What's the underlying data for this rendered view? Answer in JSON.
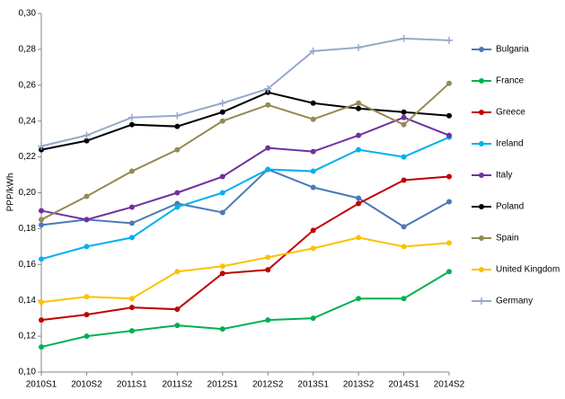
{
  "chart_data": {
    "type": "line",
    "y_label": "PPP/kWh",
    "categories": [
      "2010S1",
      "2010S2",
      "2011S1",
      "2011S2",
      "2012S1",
      "2012S2",
      "2013S1",
      "2013S2",
      "2014S1",
      "2014S2"
    ],
    "ylim": [
      0.1,
      0.3
    ],
    "yticks": [
      {
        "value": 0.1,
        "label": "0,10"
      },
      {
        "value": 0.12,
        "label": "0,12"
      },
      {
        "value": 0.14,
        "label": "0,14"
      },
      {
        "value": 0.16,
        "label": "0,16"
      },
      {
        "value": 0.18,
        "label": "0,18"
      },
      {
        "value": 0.2,
        "label": "0,20"
      },
      {
        "value": 0.22,
        "label": "0,22"
      },
      {
        "value": 0.24,
        "label": "0,24"
      },
      {
        "value": 0.26,
        "label": "0,26"
      },
      {
        "value": 0.28,
        "label": "0,28"
      },
      {
        "value": 0.3,
        "label": "0,30"
      }
    ],
    "grid": false,
    "legend": "right",
    "series": [
      {
        "name": "Bulgaria",
        "color": "#4a7ab5",
        "marker": "circle",
        "values": [
          0.182,
          0.185,
          0.183,
          0.194,
          0.189,
          0.213,
          0.203,
          0.197,
          0.181,
          0.195
        ]
      },
      {
        "name": "France",
        "color": "#00b050",
        "marker": "circle",
        "values": [
          0.114,
          0.12,
          0.123,
          0.126,
          0.124,
          0.129,
          0.13,
          0.141,
          0.141,
          0.156
        ]
      },
      {
        "name": "Greece",
        "color": "#c00000",
        "marker": "circle",
        "values": [
          0.129,
          0.132,
          0.136,
          0.135,
          0.155,
          0.157,
          0.179,
          0.194,
          0.207,
          0.209
        ]
      },
      {
        "name": "Ireland",
        "color": "#00b0f0",
        "marker": "circle",
        "values": [
          0.163,
          0.17,
          0.175,
          0.192,
          0.2,
          0.213,
          0.212,
          0.224,
          0.22,
          0.231
        ]
      },
      {
        "name": "Italy",
        "color": "#7030a0",
        "marker": "circle",
        "values": [
          0.19,
          0.185,
          0.192,
          0.2,
          0.209,
          0.225,
          0.223,
          0.232,
          0.242,
          0.232
        ]
      },
      {
        "name": "Poland",
        "color": "#000000",
        "marker": "circle",
        "values": [
          0.224,
          0.229,
          0.238,
          0.237,
          0.245,
          0.256,
          0.25,
          0.247,
          0.245,
          0.243
        ]
      },
      {
        "name": "Spain",
        "color": "#948a54",
        "marker": "circle",
        "values": [
          0.185,
          0.198,
          0.212,
          0.224,
          0.24,
          0.249,
          0.241,
          0.25,
          0.238,
          0.261
        ]
      },
      {
        "name": "United Kingdom",
        "color": "#ffc000",
        "marker": "circle",
        "values": [
          0.139,
          0.142,
          0.141,
          0.156,
          0.159,
          0.164,
          0.169,
          0.175,
          0.17,
          0.172
        ]
      },
      {
        "name": "Germany",
        "color": "#95a9c9",
        "marker": "plus",
        "values": [
          0.226,
          0.232,
          0.242,
          0.243,
          0.25,
          0.258,
          0.279,
          0.281,
          0.286,
          0.285
        ]
      }
    ]
  }
}
